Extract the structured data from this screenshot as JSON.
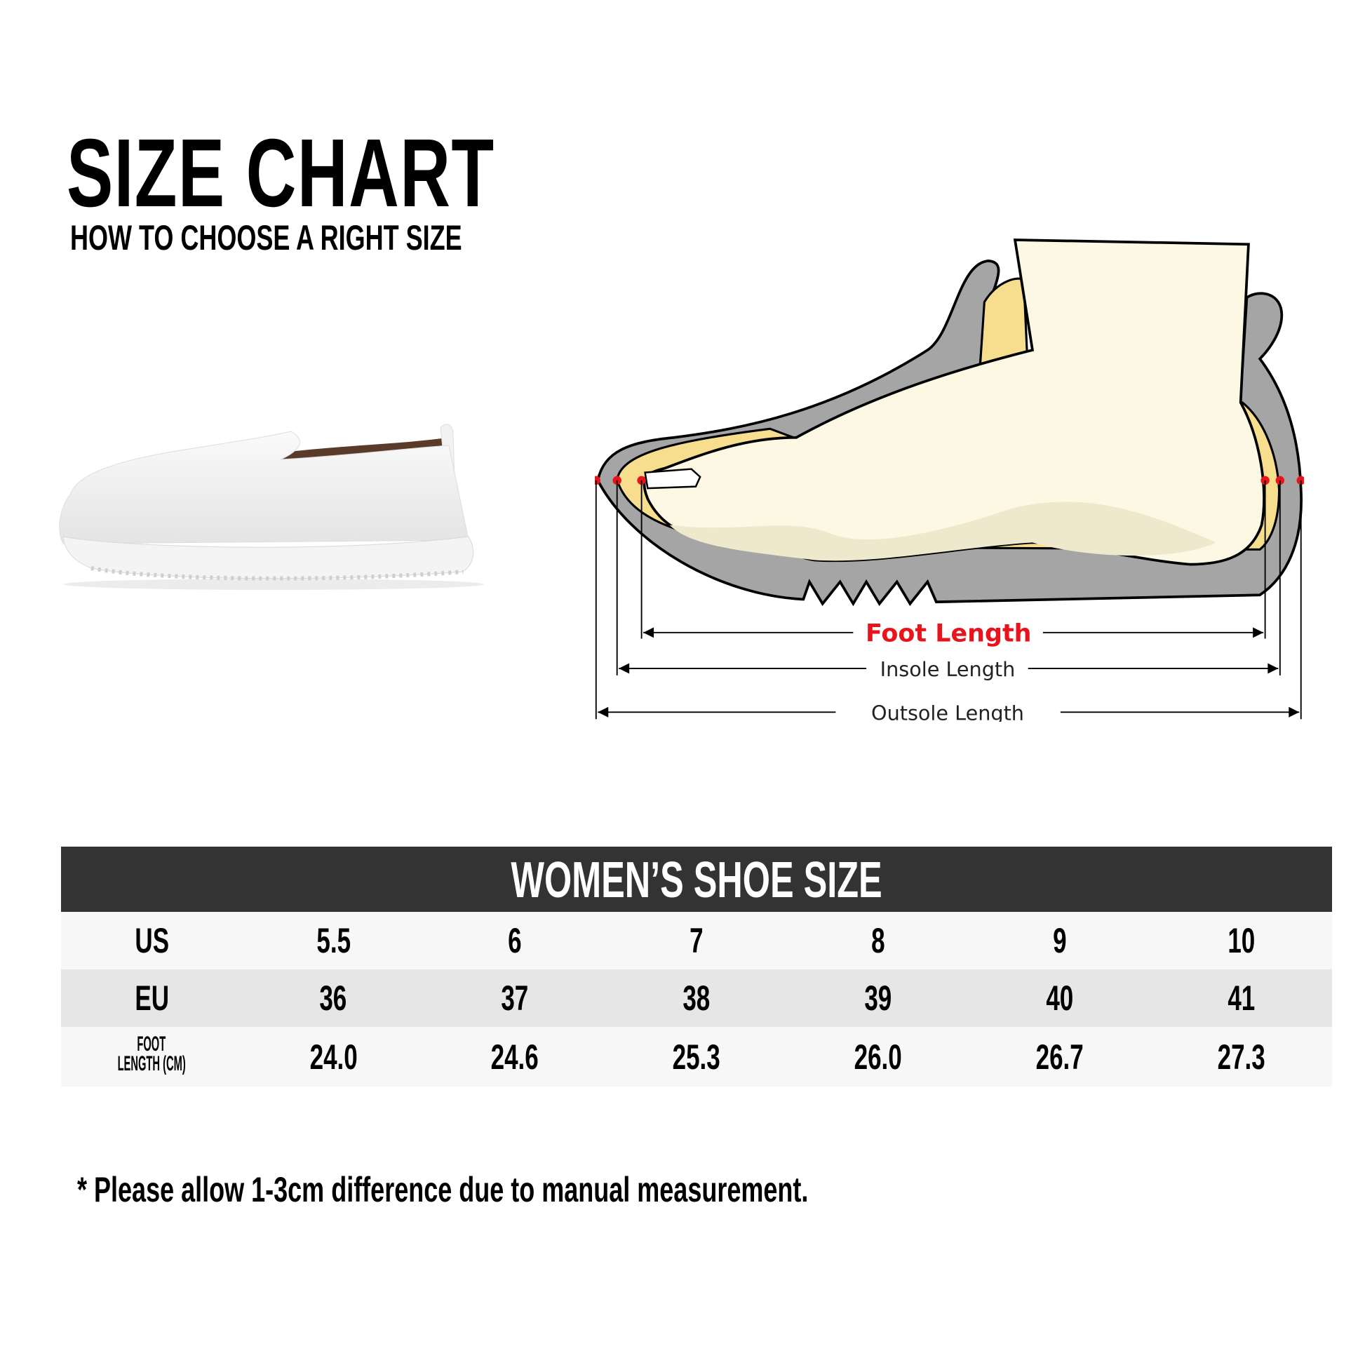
{
  "header": {
    "title": "SIZE CHART",
    "subtitle": "HOW TO CHOOSE A RIGHT SIZE"
  },
  "diagram": {
    "foot_length_label": "Foot Length",
    "insole_length_label": "Insole Length",
    "outsole_length_label": "Outsole Length",
    "colors": {
      "accent_red": "#e8141b",
      "sole_gray": "#a5a5a5",
      "insole_yellow": "#f7dd8e",
      "foot_cream": "#fdf8e4"
    }
  },
  "table": {
    "title": "WOMEN’S SHOE SIZE",
    "rows": [
      {
        "label": "US",
        "values": [
          "5.5",
          "6",
          "7",
          "8",
          "9",
          "10"
        ]
      },
      {
        "label": "EU",
        "values": [
          "36",
          "37",
          "38",
          "39",
          "40",
          "41"
        ]
      },
      {
        "label_line1": "FOOT",
        "label_line2": "LENGTH (CM)",
        "values": [
          "24.0",
          "24.6",
          "25.3",
          "26.0",
          "26.7",
          "27.3"
        ]
      }
    ]
  },
  "note": "* Please allow 1-3cm difference due to manual measurement."
}
